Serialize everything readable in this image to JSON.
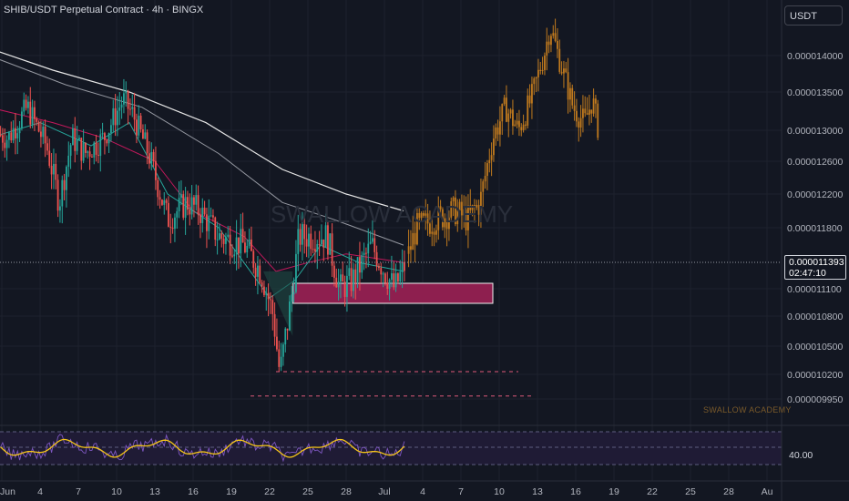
{
  "header": {
    "title": "SHIB/USDT Perpetual Contract · 4h · BINGX"
  },
  "currency_button": {
    "label": "USDT"
  },
  "watermark": {
    "text": "SWALLOW ACADEMY",
    "small_text": "SWALLOW ACADEMY"
  },
  "price_axis": {
    "ticks": [
      "0.000014000",
      "0.000013500",
      "0.000013000",
      "0.000012600",
      "0.000012200",
      "0.000011800",
      "0.000011100",
      "0.000010800",
      "0.000010500",
      "0.000010200",
      "0.000009950"
    ]
  },
  "current_price": {
    "value": "0.000011393",
    "countdown": "02:47:10"
  },
  "time_axis": {
    "labels": [
      "Jun",
      "4",
      "7",
      "10",
      "13",
      "16",
      "19",
      "22",
      "25",
      "28",
      "Jul",
      "4",
      "7",
      "10",
      "13",
      "16",
      "19",
      "22",
      "25",
      "28",
      "Au"
    ]
  },
  "oscillator": {
    "value": "40.00"
  },
  "colors": {
    "background": "#131722",
    "up_candle": "#26a69a",
    "down_candle": "#ef5350",
    "projection_candle": "#c07a1e",
    "zone": "#8e1f4f",
    "ma_white": "#e6e6e6",
    "ma_red": "#c2185b",
    "ma_green": "#26a69a",
    "osc_line": "#f5c518",
    "osc_line2": "#7e57c2"
  },
  "chart_data": {
    "type": "candlestick",
    "title": "SHIB/USDT Perpetual Contract · 4h · BINGX",
    "y_range": [
      9.5e-06,
      1.46e-05
    ],
    "historical_key_points": [
      {
        "x": "Jun 1",
        "y": 1.3e-05
      },
      {
        "x": "Jun 10",
        "y": 1.34e-05
      },
      {
        "x": "Jun 14",
        "y": 1.2e-05
      },
      {
        "x": "Jun 21",
        "y": 1.17e-05
      },
      {
        "x": "Jun 22",
        "y": 1.02e-05
      },
      {
        "x": "Jun 24",
        "y": 1.18e-05
      },
      {
        "x": "Jun 28",
        "y": 1.12e-05
      },
      {
        "x": "Jul 1",
        "y": 1.11e-05
      },
      {
        "x": "Jul 2",
        "y": 1.14e-05
      }
    ],
    "projection_key_points": [
      {
        "x": "Jul 3",
        "y": 1.17e-05
      },
      {
        "x": "Jul 7",
        "y": 1.21e-05
      },
      {
        "x": "Jul 9",
        "y": 1.33e-05
      },
      {
        "x": "Jul 11",
        "y": 1.28e-05
      },
      {
        "x": "Jul 13",
        "y": 1.44e-05
      },
      {
        "x": "Jul 15",
        "y": 1.3e-05
      }
    ],
    "support_zone": [
      1.1e-05,
      1.11e-05
    ],
    "dashed_levels": [
      1.02e-05,
      9.98e-06
    ],
    "oscillator_level": 40.0
  }
}
